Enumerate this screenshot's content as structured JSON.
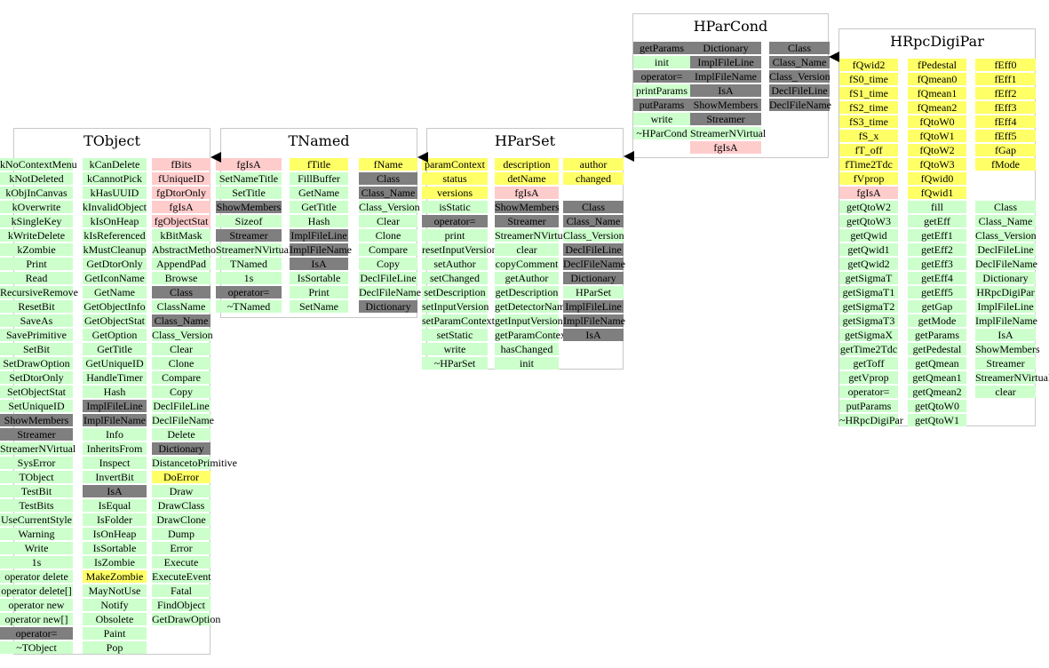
{
  "colors": {
    "data_member": "#ffff66",
    "static_member": "#ffcccc",
    "method": "#ccffcc",
    "inherited_special": "#7f7f7f",
    "box_border": "#c8c8c8"
  },
  "classes": {
    "tobject": {
      "title": "TObject",
      "cols": [
        [
          [
            "kNoContextMenu",
            "g"
          ],
          [
            "kNotDeleted",
            "g"
          ],
          [
            "kObjInCanvas",
            "g"
          ],
          [
            "kOverwrite",
            "g"
          ],
          [
            "kSingleKey",
            "g"
          ],
          [
            "kWriteDelete",
            "g"
          ],
          [
            "kZombie",
            "g"
          ],
          [
            "Print",
            "g"
          ],
          [
            "Read",
            "g"
          ],
          [
            "RecursiveRemove",
            "g"
          ],
          [
            "ResetBit",
            "g"
          ],
          [
            "SaveAs",
            "g"
          ],
          [
            "SavePrimitive",
            "g"
          ],
          [
            "SetBit",
            "g"
          ],
          [
            "SetDrawOption",
            "g"
          ],
          [
            "SetDtorOnly",
            "g"
          ],
          [
            "SetObjectStat",
            "g"
          ],
          [
            "SetUniqueID",
            "g"
          ],
          [
            "ShowMembers",
            "d"
          ],
          [
            "Streamer",
            "d"
          ],
          [
            "StreamerNVirtual",
            "g"
          ],
          [
            "SysError",
            "g"
          ],
          [
            "TObject",
            "g"
          ],
          [
            "TestBit",
            "g"
          ],
          [
            "TestBits",
            "g"
          ],
          [
            "UseCurrentStyle",
            "g"
          ],
          [
            "Warning",
            "g"
          ],
          [
            "Write",
            "g"
          ],
          [
            "1s",
            "g"
          ],
          [
            "operator delete",
            "g"
          ],
          [
            "operator delete[]",
            "g"
          ],
          [
            "operator new",
            "g"
          ],
          [
            "operator new[]",
            "g"
          ],
          [
            "operator=",
            "d"
          ],
          [
            "~TObject",
            "g"
          ]
        ],
        [
          [
            "kCanDelete",
            "g"
          ],
          [
            "kCannotPick",
            "g"
          ],
          [
            "kHasUUID",
            "g"
          ],
          [
            "kInvalidObject",
            "g"
          ],
          [
            "kIsOnHeap",
            "g"
          ],
          [
            "kIsReferenced",
            "g"
          ],
          [
            "kMustCleanup",
            "g"
          ],
          [
            "GetDtorOnly",
            "g"
          ],
          [
            "GetIconName",
            "g"
          ],
          [
            "GetName",
            "g"
          ],
          [
            "GetObjectInfo",
            "g"
          ],
          [
            "GetObjectStat",
            "g"
          ],
          [
            "GetOption",
            "g"
          ],
          [
            "GetTitle",
            "g"
          ],
          [
            "GetUniqueID",
            "g"
          ],
          [
            "HandleTimer",
            "g"
          ],
          [
            "Hash",
            "g"
          ],
          [
            "ImplFileLine",
            "d"
          ],
          [
            "ImplFileName",
            "d"
          ],
          [
            "Info",
            "g"
          ],
          [
            "InheritsFrom",
            "g"
          ],
          [
            "Inspect",
            "g"
          ],
          [
            "InvertBit",
            "g"
          ],
          [
            "IsA",
            "d"
          ],
          [
            "IsEqual",
            "g"
          ],
          [
            "IsFolder",
            "g"
          ],
          [
            "IsOnHeap",
            "g"
          ],
          [
            "IsSortable",
            "g"
          ],
          [
            "IsZombie",
            "g"
          ],
          [
            "MakeZombie",
            "y"
          ],
          [
            "MayNotUse",
            "g"
          ],
          [
            "Notify",
            "g"
          ],
          [
            "Obsolete",
            "g"
          ],
          [
            "Paint",
            "g"
          ],
          [
            "Pop",
            "g"
          ]
        ],
        [
          [
            "fBits",
            "p"
          ],
          [
            "fUniqueID",
            "p"
          ],
          [
            "fgDtorOnly",
            "p"
          ],
          [
            "fgIsA",
            "p"
          ],
          [
            "fgObjectStat",
            "p"
          ],
          [
            "kBitMask",
            "g"
          ],
          [
            "AbstractMethod",
            "g"
          ],
          [
            "AppendPad",
            "g"
          ],
          [
            "Browse",
            "g"
          ],
          [
            "Class",
            "d"
          ],
          [
            "ClassName",
            "g"
          ],
          [
            "Class_Name",
            "d"
          ],
          [
            "Class_Version",
            "g"
          ],
          [
            "Clear",
            "g"
          ],
          [
            "Clone",
            "g"
          ],
          [
            "Compare",
            "g"
          ],
          [
            "Copy",
            "g"
          ],
          [
            "DeclFileLine",
            "g"
          ],
          [
            "DeclFileName",
            "g"
          ],
          [
            "Delete",
            "g"
          ],
          [
            "Dictionary",
            "d"
          ],
          [
            "DistancetoPrimitive",
            "g"
          ],
          [
            "DoError",
            "y"
          ],
          [
            "Draw",
            "g"
          ],
          [
            "DrawClass",
            "g"
          ],
          [
            "DrawClone",
            "g"
          ],
          [
            "Dump",
            "g"
          ],
          [
            "Error",
            "g"
          ],
          [
            "Execute",
            "g"
          ],
          [
            "ExecuteEvent",
            "g"
          ],
          [
            "Fatal",
            "g"
          ],
          [
            "FindObject",
            "g"
          ],
          [
            "GetDrawOption",
            "g"
          ]
        ]
      ]
    },
    "tnamed": {
      "title": "TNamed",
      "cols": [
        [
          [
            "fgIsA",
            "p"
          ],
          [
            "SetNameTitle",
            "g"
          ],
          [
            "SetTitle",
            "g"
          ],
          [
            "ShowMembers",
            "d"
          ],
          [
            "Sizeof",
            "g"
          ],
          [
            "Streamer",
            "d"
          ],
          [
            "StreamerNVirtual",
            "g"
          ],
          [
            "TNamed",
            "g"
          ],
          [
            "1s",
            "g"
          ],
          [
            "operator=",
            "d"
          ],
          [
            "~TNamed",
            "g"
          ]
        ],
        [
          [
            "fTitle",
            "y"
          ],
          [
            "FillBuffer",
            "g"
          ],
          [
            "GetName",
            "g"
          ],
          [
            "GetTitle",
            "g"
          ],
          [
            "Hash",
            "g"
          ],
          [
            "ImplFileLine",
            "d"
          ],
          [
            "ImplFileName",
            "d"
          ],
          [
            "IsA",
            "d"
          ],
          [
            "IsSortable",
            "g"
          ],
          [
            "Print",
            "g"
          ],
          [
            "SetName",
            "g"
          ]
        ],
        [
          [
            "fName",
            "y"
          ],
          [
            "Class",
            "d"
          ],
          [
            "Class_Name",
            "d"
          ],
          [
            "Class_Version",
            "g"
          ],
          [
            "Clear",
            "g"
          ],
          [
            "Clone",
            "g"
          ],
          [
            "Compare",
            "g"
          ],
          [
            "Copy",
            "g"
          ],
          [
            "DeclFileLine",
            "g"
          ],
          [
            "DeclFileName",
            "g"
          ],
          [
            "Dictionary",
            "d"
          ]
        ]
      ]
    },
    "hparset": {
      "title": "HParSet",
      "cols": [
        [
          [
            "paramContext",
            "y"
          ],
          [
            "status",
            "y"
          ],
          [
            "versions",
            "y"
          ],
          [
            "isStatic",
            "g"
          ],
          [
            "operator=",
            "d"
          ],
          [
            "print",
            "g"
          ],
          [
            "resetInputVersions",
            "g"
          ],
          [
            "setAuthor",
            "g"
          ],
          [
            "setChanged",
            "g"
          ],
          [
            "setDescription",
            "g"
          ],
          [
            "setInputVersion",
            "g"
          ],
          [
            "setParamContext",
            "g"
          ],
          [
            "setStatic",
            "g"
          ],
          [
            "write",
            "g"
          ],
          [
            "~HParSet",
            "g"
          ]
        ],
        [
          [
            "description",
            "y"
          ],
          [
            "detName",
            "y"
          ],
          [
            "fgIsA",
            "p"
          ],
          [
            "ShowMembers",
            "d"
          ],
          [
            "Streamer",
            "d"
          ],
          [
            "StreamerNVirtual",
            "g"
          ],
          [
            "clear",
            "g"
          ],
          [
            "copyComment",
            "g"
          ],
          [
            "getAuthor",
            "g"
          ],
          [
            "getDescription",
            "g"
          ],
          [
            "getDetectorName",
            "g"
          ],
          [
            "getInputVersion",
            "g"
          ],
          [
            "getParamContext",
            "g"
          ],
          [
            "hasChanged",
            "g"
          ],
          [
            "init",
            "g"
          ]
        ],
        [
          [
            "author",
            "y"
          ],
          [
            "changed",
            "y"
          ],
          [
            "",
            ""
          ],
          [
            "Class",
            "d"
          ],
          [
            "Class_Name",
            "d"
          ],
          [
            "Class_Version",
            "g"
          ],
          [
            "DeclFileLine",
            "d"
          ],
          [
            "DeclFileName",
            "d"
          ],
          [
            "Dictionary",
            "d"
          ],
          [
            "HParSet",
            "g"
          ],
          [
            "ImplFileLine",
            "d"
          ],
          [
            "ImplFileName",
            "d"
          ],
          [
            "IsA",
            "d"
          ]
        ]
      ]
    },
    "hparcond": {
      "title": "HParCond",
      "cols": [
        [
          [
            "getParams",
            "d"
          ],
          [
            "init",
            "g"
          ],
          [
            "operator=",
            "d"
          ],
          [
            "printParams",
            "g"
          ],
          [
            "putParams",
            "d"
          ],
          [
            "write",
            "g"
          ],
          [
            "~HParCond",
            "g"
          ]
        ],
        [
          [
            "Dictionary",
            "d"
          ],
          [
            "ImplFileLine",
            "d"
          ],
          [
            "ImplFileName",
            "d"
          ],
          [
            "IsA",
            "d"
          ],
          [
            "ShowMembers",
            "d"
          ],
          [
            "Streamer",
            "d"
          ],
          [
            "StreamerNVirtual",
            "g"
          ],
          [
            "fgIsA",
            "p"
          ]
        ],
        [
          [
            "Class",
            "d"
          ],
          [
            "Class_Name",
            "d"
          ],
          [
            "Class_Version",
            "d"
          ],
          [
            "DeclFileLine",
            "d"
          ],
          [
            "DeclFileName",
            "d"
          ]
        ]
      ]
    },
    "hrpcdigipar": {
      "title": "HRpcDigiPar",
      "cols": [
        [
          [
            "fQwid2",
            "y"
          ],
          [
            "fS0_time",
            "y"
          ],
          [
            "fS1_time",
            "y"
          ],
          [
            "fS2_time",
            "y"
          ],
          [
            "fS3_time",
            "y"
          ],
          [
            "fS_x",
            "y"
          ],
          [
            "fT_off",
            "y"
          ],
          [
            "fTime2Tdc",
            "y"
          ],
          [
            "fVprop",
            "y"
          ],
          [
            "fgIsA",
            "p"
          ],
          [
            "getQtoW2",
            "g"
          ],
          [
            "getQtoW3",
            "g"
          ],
          [
            "getQwid",
            "g"
          ],
          [
            "getQwid1",
            "g"
          ],
          [
            "getQwid2",
            "g"
          ],
          [
            "getSigmaT",
            "g"
          ],
          [
            "getSigmaT1",
            "g"
          ],
          [
            "getSigmaT2",
            "g"
          ],
          [
            "getSigmaT3",
            "g"
          ],
          [
            "getSigmaX",
            "g"
          ],
          [
            "getTime2Tdc",
            "g"
          ],
          [
            "getToff",
            "g"
          ],
          [
            "getVprop",
            "g"
          ],
          [
            "operator=",
            "g"
          ],
          [
            "putParams",
            "g"
          ],
          [
            "~HRpcDigiPar",
            "g"
          ]
        ],
        [
          [
            "fPedestal",
            "y"
          ],
          [
            "fQmean0",
            "y"
          ],
          [
            "fQmean1",
            "y"
          ],
          [
            "fQmean2",
            "y"
          ],
          [
            "fQtoW0",
            "y"
          ],
          [
            "fQtoW1",
            "y"
          ],
          [
            "fQtoW2",
            "y"
          ],
          [
            "fQtoW3",
            "y"
          ],
          [
            "fQwid0",
            "y"
          ],
          [
            "fQwid1",
            "y"
          ],
          [
            "fill",
            "g"
          ],
          [
            "getEff",
            "g"
          ],
          [
            "getEff1",
            "g"
          ],
          [
            "getEff2",
            "g"
          ],
          [
            "getEff3",
            "g"
          ],
          [
            "getEff4",
            "g"
          ],
          [
            "getEff5",
            "g"
          ],
          [
            "getGap",
            "g"
          ],
          [
            "getMode",
            "g"
          ],
          [
            "getParams",
            "g"
          ],
          [
            "getPedestal",
            "g"
          ],
          [
            "getQmean",
            "g"
          ],
          [
            "getQmean1",
            "g"
          ],
          [
            "getQmean2",
            "g"
          ],
          [
            "getQtoW0",
            "g"
          ],
          [
            "getQtoW1",
            "g"
          ]
        ],
        [
          [
            "fEff0",
            "y"
          ],
          [
            "fEff1",
            "y"
          ],
          [
            "fEff2",
            "y"
          ],
          [
            "fEff3",
            "y"
          ],
          [
            "fEff4",
            "y"
          ],
          [
            "fEff5",
            "y"
          ],
          [
            "fGap",
            "y"
          ],
          [
            "fMode",
            "y"
          ],
          [
            "",
            ""
          ],
          [
            "",
            ""
          ],
          [
            "Class",
            "g"
          ],
          [
            "Class_Name",
            "g"
          ],
          [
            "Class_Version",
            "g"
          ],
          [
            "DeclFileLine",
            "g"
          ],
          [
            "DeclFileName",
            "g"
          ],
          [
            "Dictionary",
            "g"
          ],
          [
            "HRpcDigiPar",
            "g"
          ],
          [
            "ImplFileLine",
            "g"
          ],
          [
            "ImplFileName",
            "g"
          ],
          [
            "IsA",
            "g"
          ],
          [
            "ShowMembers",
            "g"
          ],
          [
            "Streamer",
            "g"
          ],
          [
            "StreamerNVirtual",
            "g"
          ],
          [
            "clear",
            "g"
          ]
        ]
      ]
    }
  }
}
